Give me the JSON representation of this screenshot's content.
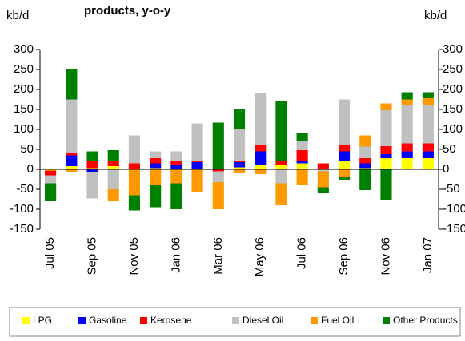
{
  "chart_data": {
    "type": "bar",
    "stacked": true,
    "title": "products, y-o-y",
    "y_label": "kb/d",
    "y2_label": "kb/d",
    "categories": [
      "Jul 05",
      null,
      "Sep 05",
      null,
      "Nov 05",
      null,
      "Jan 06",
      null,
      "Mar 06",
      null,
      "May 06",
      null,
      "Jul 06",
      null,
      "Sep 06",
      null,
      "Nov 06",
      null,
      "Jan 07"
    ],
    "series": [
      {
        "name": "LPG",
        "color": "#ffff00",
        "values": [
          -3,
          8,
          3,
          8,
          0,
          3,
          2,
          2,
          0,
          5,
          12,
          10,
          15,
          0,
          20,
          3,
          28,
          28,
          28
        ]
      },
      {
        "name": "Gasoline",
        "color": "#0000ff",
        "values": [
          0,
          27,
          -8,
          0,
          0,
          12,
          10,
          16,
          0,
          13,
          33,
          0,
          7,
          0,
          25,
          12,
          10,
          17,
          17
        ]
      },
      {
        "name": "Kerosene",
        "color": "#ff0000",
        "values": [
          -12,
          5,
          17,
          12,
          15,
          13,
          10,
          2,
          -5,
          4,
          17,
          12,
          26,
          15,
          17,
          13,
          20,
          20,
          20
        ]
      },
      {
        "name": "Diesel Oil",
        "color": "#c0c0c0",
        "values": [
          -20,
          135,
          -65,
          -50,
          70,
          17,
          23,
          95,
          -27,
          78,
          128,
          -35,
          22,
          -5,
          113,
          29,
          90,
          95,
          95
        ]
      },
      {
        "name": "Fuel Oil",
        "color": "#ff9900",
        "values": [
          0,
          -8,
          0,
          -30,
          -65,
          -40,
          -35,
          -57,
          -68,
          -10,
          -12,
          -55,
          -40,
          -40,
          -20,
          28,
          17,
          15,
          18
        ]
      },
      {
        "name": "Other Products",
        "color": "#008000",
        "values": [
          -45,
          75,
          25,
          28,
          -38,
          -55,
          -65,
          0,
          117,
          50,
          0,
          148,
          20,
          -15,
          -8,
          -52,
          -78,
          18,
          15
        ]
      }
    ],
    "ylim": [
      -150,
      300
    ],
    "yticks": [
      -150,
      -100,
      -50,
      0,
      50,
      100,
      150,
      200,
      250,
      300
    ],
    "y2lim": [
      -150,
      300
    ],
    "y2ticks": [
      -150,
      -100,
      -50,
      0,
      50,
      100,
      150,
      200,
      250,
      300
    ],
    "grid": false,
    "legend": "bottom"
  }
}
